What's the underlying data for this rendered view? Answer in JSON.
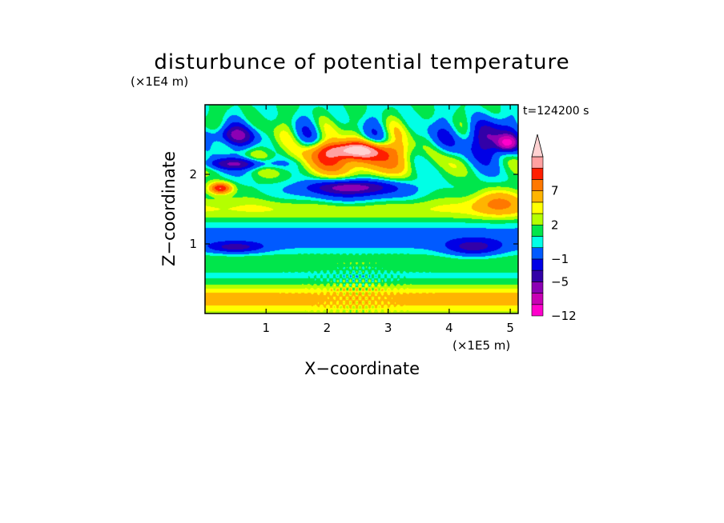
{
  "chart_data": {
    "type": "heatmap",
    "title": "disturbunce of potential temperature",
    "subtitle": "",
    "xlabel": "X−coordinate",
    "ylabel": "Z−coordinate",
    "x_unit": "(×1E5 m)",
    "y_unit": "(×1E4 m)",
    "time_label": "t=124200 s",
    "xlim": [
      0,
      5.13
    ],
    "ylim": [
      0,
      3.0
    ],
    "x_ticks": [
      {
        "value": 1,
        "label": "1"
      },
      {
        "value": 2,
        "label": "2"
      },
      {
        "value": 3,
        "label": "3"
      },
      {
        "value": 4,
        "label": "4"
      },
      {
        "value": 5,
        "label": "5"
      }
    ],
    "y_ticks": [
      {
        "value": 1,
        "label": "1"
      },
      {
        "value": 2,
        "label": "2"
      }
    ],
    "colorbar": {
      "extend": "max",
      "levels": [
        -12,
        -9,
        -7,
        -5,
        -3,
        -1,
        0,
        1,
        2,
        3,
        5,
        7,
        9,
        11
      ],
      "colors": [
        "#ff00cc",
        "#c800b4",
        "#8c00b4",
        "#3200a8",
        "#0000e6",
        "#005aff",
        "#00ffe6",
        "#00e64b",
        "#b4ff00",
        "#ffff00",
        "#ffb400",
        "#ff7800",
        "#ff1e00",
        "#ffa0a0",
        "#ffd2d2"
      ],
      "labels": [
        {
          "value": -12,
          "label": "−12"
        },
        {
          "value": -5,
          "label": "−5"
        },
        {
          "value": -1,
          "label": "−1"
        },
        {
          "value": 2,
          "label": "2"
        },
        {
          "value": 7,
          "label": "7"
        }
      ]
    },
    "field_features": [
      {
        "x": 2.45,
        "z": 2.35,
        "value": 9,
        "sx": 0.55,
        "sz": 0.12
      },
      {
        "x": 2.4,
        "z": 2.2,
        "value": 6,
        "sx": 1.0,
        "sz": 0.22
      },
      {
        "x": 2.4,
        "z": 1.82,
        "value": -7,
        "sx": 0.7,
        "sz": 0.1
      },
      {
        "x": 2.4,
        "z": 1.7,
        "value": -3,
        "sx": 1.0,
        "sz": 0.15
      },
      {
        "x": 0.25,
        "z": 1.8,
        "value": 9,
        "sx": 0.18,
        "sz": 0.08
      },
      {
        "x": 0.4,
        "z": 2.55,
        "value": -6,
        "sx": 0.45,
        "sz": 0.14
      },
      {
        "x": 0.6,
        "z": 2.15,
        "value": -6,
        "sx": 0.6,
        "sz": 0.08
      },
      {
        "x": 4.6,
        "z": 2.5,
        "value": -6,
        "sx": 0.55,
        "sz": 0.25
      },
      {
        "x": 4.95,
        "z": 2.45,
        "value": -9,
        "sx": 0.15,
        "sz": 0.1
      },
      {
        "x": 4.4,
        "z": 0.95,
        "value": -5,
        "sx": 0.45,
        "sz": 0.12
      },
      {
        "x": 0.5,
        "z": 0.95,
        "value": -5,
        "sx": 0.45,
        "sz": 0.08
      },
      {
        "x": 4.8,
        "z": 1.6,
        "value": 4,
        "sx": 0.4,
        "sz": 0.18
      }
    ]
  }
}
